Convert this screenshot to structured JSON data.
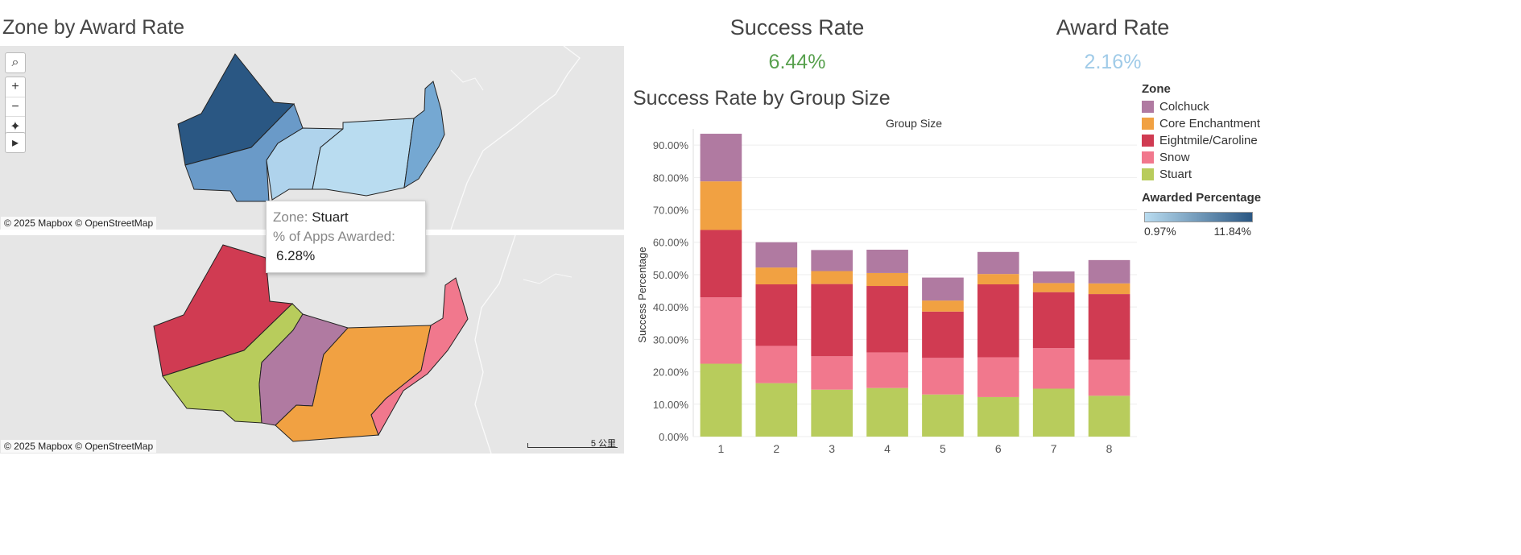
{
  "map_section": {
    "title": "Zone by Award Rate",
    "attribution_top": "© 2025 Mapbox © OpenStreetMap",
    "attribution_bottom": "© 2025 Mapbox © OpenStreetMap",
    "scale_label": "5 公里",
    "controls": {
      "search": "⌕",
      "zoom_in": "+",
      "zoom_out": "−",
      "pin": "✦",
      "play": "▸"
    },
    "tooltip": {
      "zone_label": "Zone:",
      "zone_value": "Stuart",
      "pct_label": "% of Apps Awarded:",
      "pct_value": "6.28%"
    }
  },
  "kpis": {
    "success": {
      "title": "Success Rate",
      "value": "6.44%",
      "color": "#59a14f"
    },
    "award": {
      "title": "Award Rate",
      "value": "2.16%",
      "color": "#a0cbe8"
    }
  },
  "legend": {
    "zone_title": "Zone",
    "zones": [
      {
        "name": "Colchuck",
        "color": "#b07aa1"
      },
      {
        "name": "Core Enchantment",
        "color": "#f1a142"
      },
      {
        "name": "Eightmile/Caroline",
        "color": "#d03b52"
      },
      {
        "name": "Snow",
        "color": "#f1788d"
      },
      {
        "name": "Stuart",
        "color": "#b8cc5c"
      }
    ],
    "award_title": "Awarded Percentage",
    "award_min": "0.97%",
    "award_max": "11.84%",
    "gradient_start": "#b9dcf0",
    "gradient_end": "#2a5783"
  },
  "chart_data": {
    "type": "bar",
    "stacked": true,
    "title": "Success Rate by Group Size",
    "header": "Group Size",
    "xlabel": "",
    "ylabel": "Success Percentage",
    "ylim": [
      0,
      95
    ],
    "yticks": [
      "0.00%",
      "10.00%",
      "20.00%",
      "30.00%",
      "40.00%",
      "50.00%",
      "60.00%",
      "70.00%",
      "80.00%",
      "90.00%"
    ],
    "categories": [
      "1",
      "2",
      "3",
      "4",
      "5",
      "6",
      "7",
      "8"
    ],
    "series": [
      {
        "name": "Stuart",
        "color": "#b8cc5c",
        "values": [
          22.5,
          16.5,
          14.5,
          15.0,
          13.0,
          12.2,
          14.8,
          12.6
        ]
      },
      {
        "name": "Snow",
        "color": "#f1788d",
        "values": [
          20.5,
          11.5,
          10.3,
          11.0,
          11.3,
          12.3,
          12.5,
          11.1
        ]
      },
      {
        "name": "Eightmile/Caroline",
        "color": "#d03b52",
        "values": [
          20.8,
          19.0,
          22.3,
          20.5,
          14.3,
          22.5,
          17.3,
          20.3
        ]
      },
      {
        "name": "Core Enchantment",
        "color": "#f1a142",
        "values": [
          15.0,
          5.2,
          4.0,
          4.0,
          3.4,
          3.2,
          2.8,
          3.3
        ]
      },
      {
        "name": "Colchuck",
        "color": "#b07aa1",
        "values": [
          14.7,
          7.8,
          6.5,
          7.2,
          7.1,
          6.8,
          3.6,
          7.2
        ]
      }
    ]
  }
}
